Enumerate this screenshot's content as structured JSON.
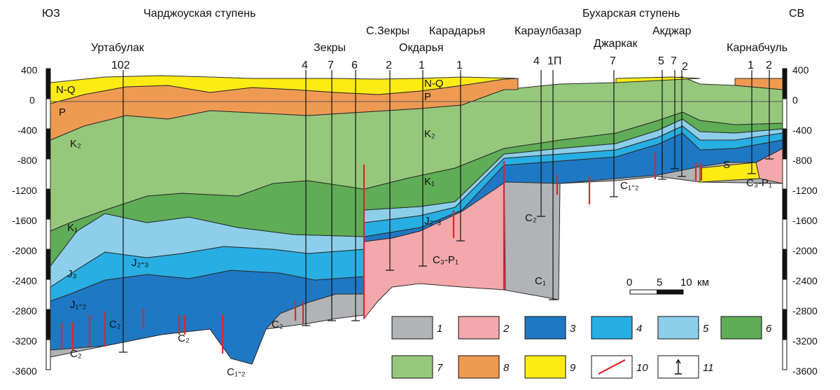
{
  "orientation": {
    "left": "ЮЗ",
    "right": "СВ"
  },
  "regions": {
    "left": "Чарджоуская ступень",
    "right": "Бухарская ступень"
  },
  "areas": [
    "Уртабулак",
    "Зекры",
    "С.Зекры",
    "Окдарья",
    "Карадарья",
    "Караулбазар",
    "Джаркак",
    "Акджар",
    "Карнабчуль"
  ],
  "depth_ticks": [
    "400",
    "0",
    "-400",
    "-800",
    "-1200",
    "-1600",
    "-2000",
    "-2400",
    "-2800",
    "-3200",
    "-3600"
  ],
  "wells": [
    "102",
    "4",
    "7",
    "6",
    "2",
    "1",
    "1",
    "4",
    "1П",
    "7",
    "5",
    "7",
    "2",
    "1",
    "2"
  ],
  "strata": {
    "nq": "N-Q",
    "nq2": "N-Q",
    "p": "P",
    "p2": "P",
    "k2": "K₂",
    "k2b": "K₂",
    "k1": "K₁",
    "k1b": "K₁",
    "j3": "J₃",
    "j23": "J₂-₃",
    "j23b": "J₂-₃",
    "j12": "J₁-₂",
    "c2a": "C₂",
    "c2b": "C₂",
    "c2c": "C₂",
    "c2d": "C₂",
    "c2e": "C₂",
    "c12a": "C₁-₂",
    "c12b": "C₁-₂",
    "c1": "C₁",
    "c3p1a": "C₃-P₁",
    "c3p1b": "C₃-P₁",
    "s": "S"
  },
  "scale": {
    "ticks": [
      "0",
      "5",
      "10"
    ],
    "unit": "км"
  },
  "legend": [
    {
      "num": "1",
      "color": "#b1b3b6"
    },
    {
      "num": "2",
      "color": "#f3a8ab"
    },
    {
      "num": "3",
      "color": "#1f78c4"
    },
    {
      "num": "4",
      "color": "#27aee2"
    },
    {
      "num": "5",
      "color": "#8dcfea"
    },
    {
      "num": "6",
      "color": "#5fad56"
    },
    {
      "num": "7",
      "color": "#96c87c"
    },
    {
      "num": "8",
      "color": "#ef9a52"
    },
    {
      "num": "9",
      "color": "#ffeb14"
    },
    {
      "num": "10",
      "color": "#d9282f"
    },
    {
      "num": "11",
      "color": "#111111"
    }
  ]
}
